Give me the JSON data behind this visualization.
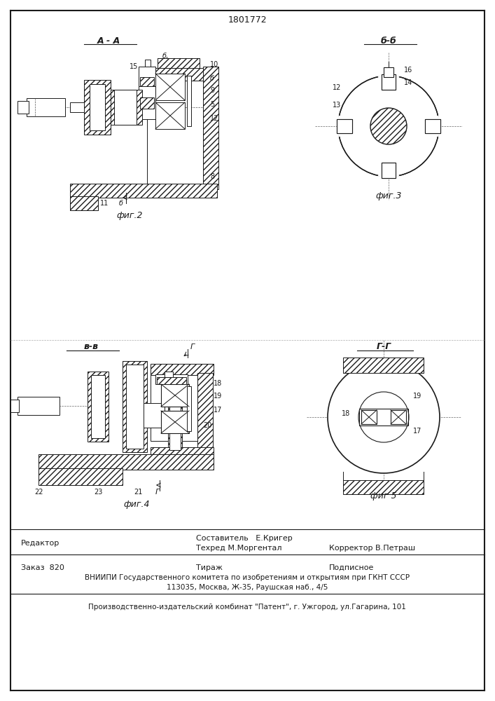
{
  "patent_number": "1801772",
  "background_color": "#ffffff",
  "text_color": "#1a1a1a",
  "line_color": "#1a1a1a",
  "fig2_label": "фиг.2",
  "fig3_label": "фиг.3",
  "fig4_label": "фиг.4",
  "fig5_label": "фиг 5",
  "section_AA": "А - А",
  "section_BB": "б-б",
  "section_VV": "в-в",
  "section_GG": "Г-Г"
}
